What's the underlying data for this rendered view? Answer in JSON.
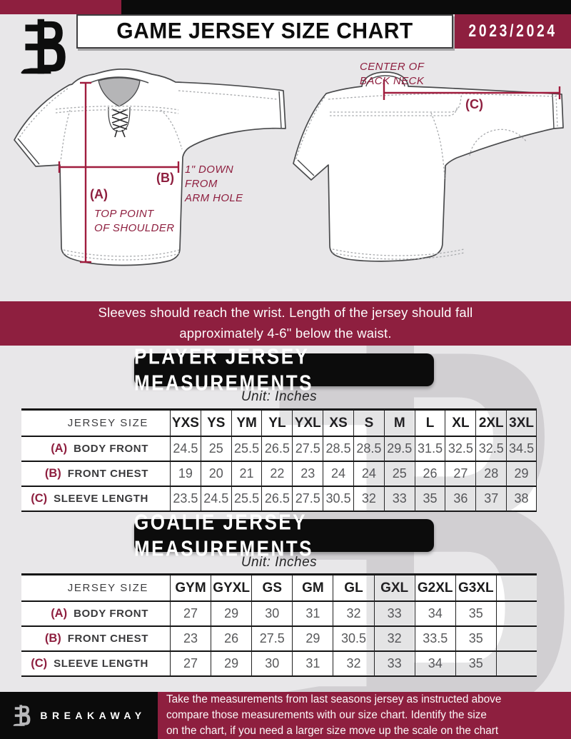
{
  "colors": {
    "maroon": "#8e1f3f",
    "line_maroon": "#a01d3e",
    "black": "#0b0b0b",
    "background": "#e8e7e9",
    "table_value_text": "#58595b"
  },
  "header": {
    "logo": "breakaway-b-logo",
    "title": "GAME JERSEY SIZE CHART",
    "season": "2023/2024"
  },
  "diagram": {
    "front_jersey": {
      "label_a": "(A)",
      "note_a_lines": [
        "TOP POINT",
        "OF SHOULDER"
      ],
      "label_b": "(B)",
      "note_b_lines": [
        "1\" DOWN",
        "FROM",
        "ARM HOLE"
      ]
    },
    "back_jersey": {
      "label_c": "(C)",
      "note_c_lines": [
        "CENTER OF",
        "BACK NECK"
      ]
    }
  },
  "instruction_banner": {
    "lines": [
      "Sleeves should reach the wrist. Length of the jersey should fall",
      "approximately 4-6\" below the waist."
    ]
  },
  "player_section": {
    "title": "PLAYER JERSEY MEASUREMENTS",
    "unit": "Unit: Inches",
    "table": {
      "corner": "JERSEY SIZE",
      "columns": [
        "YXS",
        "YS",
        "YM",
        "YL",
        "YXL",
        "XS",
        "S",
        "M",
        "L",
        "XL",
        "2XL",
        "3XL"
      ],
      "rows": [
        {
          "key": "(A)",
          "label": "BODY FRONT",
          "values": [
            "24.5",
            "25",
            "25.5",
            "26.5",
            "27.5",
            "28.5",
            "28.5",
            "29.5",
            "31.5",
            "32.5",
            "32.5",
            "34.5"
          ]
        },
        {
          "key": "(B)",
          "label": "FRONT CHEST",
          "values": [
            "19",
            "20",
            "21",
            "22",
            "23",
            "24",
            "24",
            "25",
            "26",
            "27",
            "28",
            "29"
          ]
        },
        {
          "key": "(C)",
          "label": "SLEEVE LENGTH",
          "values": [
            "23.5",
            "24.5",
            "25.5",
            "26.5",
            "27.5",
            "30.5",
            "32",
            "33",
            "35",
            "36",
            "37",
            "38"
          ]
        }
      ]
    }
  },
  "goalie_section": {
    "title": "GOALIE JERSEY MEASUREMENTS",
    "unit": "Unit: Inches",
    "table": {
      "corner": "JERSEY SIZE",
      "columns": [
        "GYM",
        "GYXL",
        "GS",
        "GM",
        "GL",
        "GXL",
        "G2XL",
        "G3XL",
        ""
      ],
      "rows": [
        {
          "key": "(A)",
          "label": "BODY FRONT",
          "values": [
            "27",
            "29",
            "30",
            "31",
            "32",
            "33",
            "34",
            "35",
            ""
          ]
        },
        {
          "key": "(B)",
          "label": "FRONT CHEST",
          "values": [
            "23",
            "26",
            "27.5",
            "29",
            "30.5",
            "32",
            "33.5",
            "35",
            ""
          ]
        },
        {
          "key": "(C)",
          "label": "SLEEVE LENGTH",
          "values": [
            "27",
            "29",
            "30",
            "31",
            "32",
            "33",
            "34",
            "35",
            ""
          ]
        }
      ]
    }
  },
  "footer": {
    "brand": "BREAKAWAY",
    "lines": [
      "Take the measurements from last seasons jersey as instructed above",
      "compare those measurements  with our size chart. Identify the size",
      "on the chart, if you need a larger size move up the scale on the chart"
    ]
  }
}
